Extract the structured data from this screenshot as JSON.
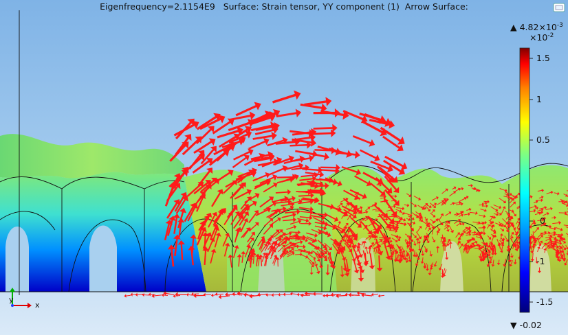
{
  "title": "Eigenfrequency=2.1154E9   Surface: Strain tensor, YY component (1)  Arrow Surface:",
  "colorbar": {
    "max_label": "4.82×10",
    "max_exp": "-3",
    "scale_label": "×10",
    "scale_exp": "-2",
    "min_label": "-0.02",
    "ticks": [
      "1.5",
      "1",
      "0.5",
      "0",
      "-1",
      "-1.5"
    ],
    "max_marker": "▲",
    "min_marker": "▼"
  },
  "axes": {
    "x_label": "x",
    "y_label": "y"
  },
  "icons": {
    "corner": "window-restore-icon"
  },
  "colors": {
    "arrows": "#ff1a1a",
    "background_top": "#7fb3e6",
    "background_bottom": "#dbeaf8"
  }
}
